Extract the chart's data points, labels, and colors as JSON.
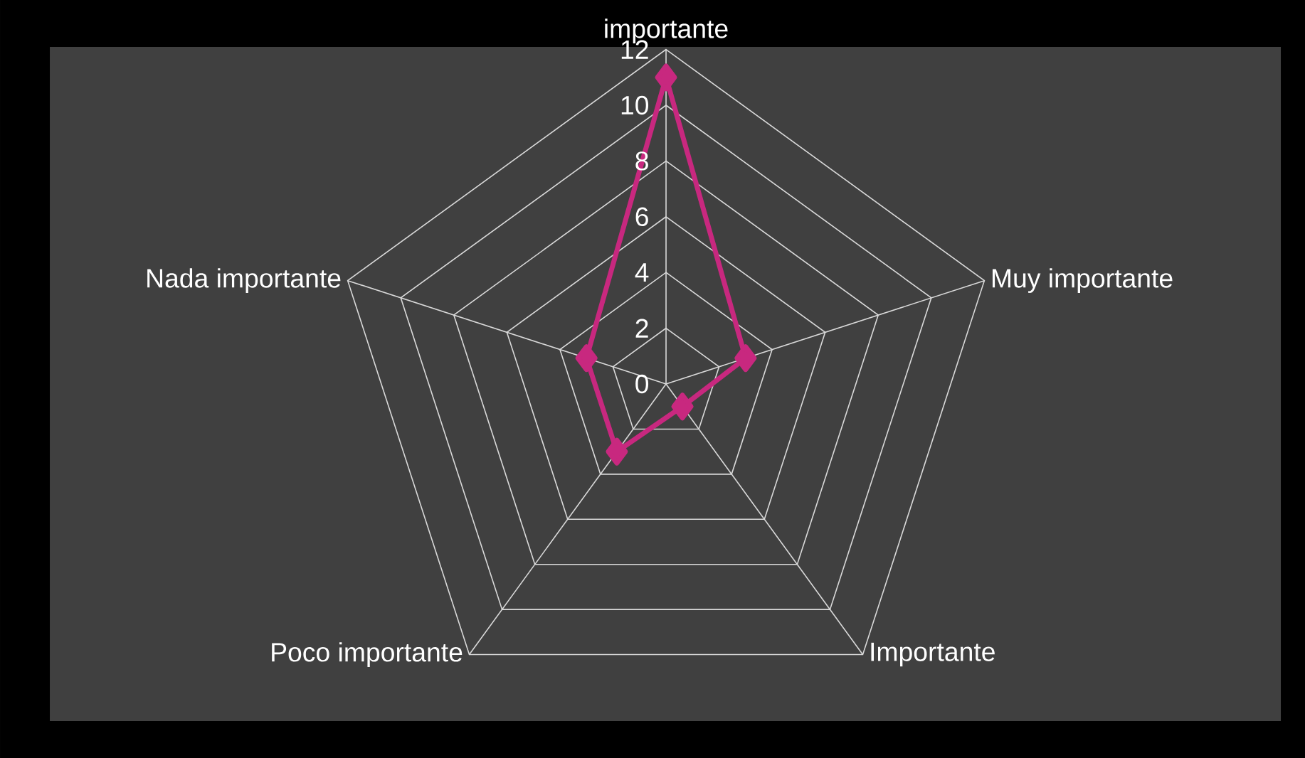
{
  "chart_data": {
    "type": "radar",
    "categories": [
      "importante",
      "Muy importante",
      "Importante",
      "Poco importante",
      "Nada importante"
    ],
    "series": [
      {
        "color": "#c8287f",
        "values": [
          11,
          3,
          1,
          3,
          3
        ]
      }
    ],
    "ylim": [
      0,
      12
    ],
    "yticks": [
      0,
      2,
      4,
      6,
      8,
      10,
      12
    ],
    "grid": true,
    "marker": "diamond",
    "line_style": "solid"
  }
}
